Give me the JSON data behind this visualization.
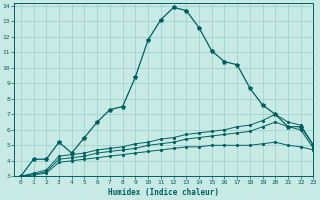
{
  "xlabel": "Humidex (Indice chaleur)",
  "ylabel": "",
  "xlim": [
    -0.5,
    23
  ],
  "ylim": [
    3,
    14.2
  ],
  "yticks": [
    3,
    4,
    5,
    6,
    7,
    8,
    9,
    10,
    11,
    12,
    13,
    14
  ],
  "xticks": [
    0,
    1,
    2,
    3,
    4,
    5,
    6,
    7,
    8,
    9,
    10,
    11,
    12,
    13,
    14,
    15,
    16,
    17,
    18,
    19,
    20,
    21,
    22,
    23
  ],
  "bg_color": "#c8eae5",
  "line_color": "#006060",
  "grid_color": "#99cccc",
  "line1_x": [
    0,
    1,
    2,
    3,
    4,
    5,
    6,
    7,
    8,
    9,
    10,
    11,
    12,
    13,
    14,
    15,
    16,
    17,
    18,
    19,
    20,
    21,
    22,
    23
  ],
  "line1_y": [
    3.0,
    4.1,
    4.1,
    5.2,
    4.5,
    5.5,
    6.5,
    7.3,
    7.5,
    9.4,
    11.8,
    13.1,
    13.9,
    13.7,
    12.6,
    11.1,
    10.4,
    10.2,
    8.7,
    7.6,
    7.0,
    6.2,
    6.2,
    5.0
  ],
  "line2_x": [
    0,
    1,
    2,
    3,
    4,
    5,
    6,
    7,
    8,
    9,
    10,
    11,
    12,
    13,
    14,
    15,
    16,
    17,
    18,
    19,
    20,
    21,
    22,
    23
  ],
  "line2_y": [
    3.0,
    3.2,
    3.4,
    4.3,
    4.4,
    4.5,
    4.7,
    4.8,
    4.9,
    5.1,
    5.2,
    5.4,
    5.5,
    5.7,
    5.8,
    5.9,
    6.0,
    6.2,
    6.3,
    6.6,
    7.0,
    6.5,
    6.3,
    5.0
  ],
  "line3_x": [
    0,
    1,
    2,
    3,
    4,
    5,
    6,
    7,
    8,
    9,
    10,
    11,
    12,
    13,
    14,
    15,
    16,
    17,
    18,
    19,
    20,
    21,
    22,
    23
  ],
  "line3_y": [
    3.0,
    3.1,
    3.3,
    4.1,
    4.2,
    4.3,
    4.5,
    4.6,
    4.7,
    4.8,
    5.0,
    5.1,
    5.2,
    5.4,
    5.5,
    5.6,
    5.7,
    5.8,
    5.9,
    6.2,
    6.5,
    6.2,
    6.0,
    4.8
  ],
  "line4_x": [
    0,
    1,
    2,
    3,
    4,
    5,
    6,
    7,
    8,
    9,
    10,
    11,
    12,
    13,
    14,
    15,
    16,
    17,
    18,
    19,
    20,
    21,
    22,
    23
  ],
  "line4_y": [
    3.0,
    3.1,
    3.2,
    3.9,
    4.0,
    4.1,
    4.2,
    4.3,
    4.4,
    4.5,
    4.6,
    4.7,
    4.8,
    4.9,
    4.9,
    5.0,
    5.0,
    5.0,
    5.0,
    5.1,
    5.2,
    5.0,
    4.9,
    4.7
  ]
}
